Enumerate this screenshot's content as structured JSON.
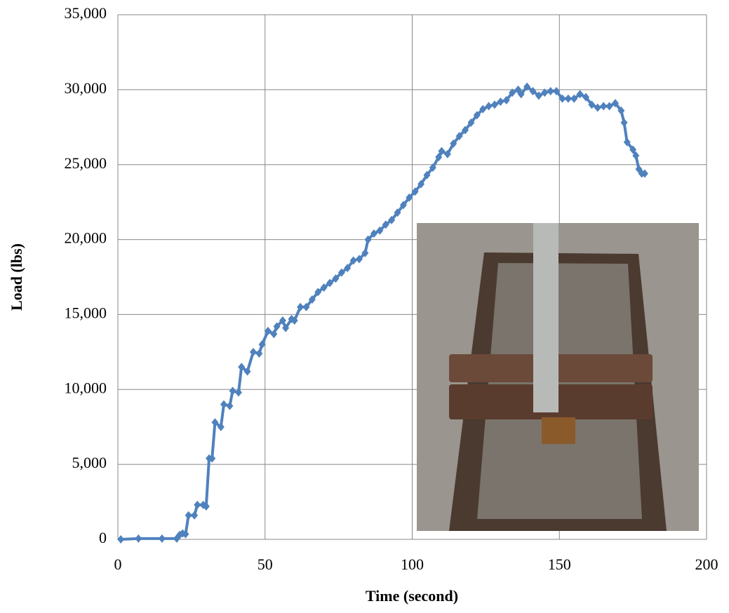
{
  "chart_data": {
    "type": "line",
    "x_label": "Time (second)",
    "y_label": "Load (lbs)",
    "xlim": [
      0,
      200
    ],
    "xticks": [
      0,
      50,
      100,
      150,
      200
    ],
    "ylim": [
      0,
      35000
    ],
    "yticks": [
      0,
      {
        "value": 5000,
        "label": "5,000"
      },
      {
        "value": 10000,
        "label": "10,000"
      },
      {
        "value": 15000,
        "label": "15,000"
      },
      {
        "value": 20000,
        "label": "20,000"
      },
      {
        "value": 25000,
        "label": "25,000"
      },
      {
        "value": 30000,
        "label": "30,000"
      },
      {
        "value": 35000,
        "label": "35,000"
      }
    ],
    "grid": true,
    "series": [
      {
        "color": "#4f81bd",
        "x": [
          1,
          7,
          15,
          20,
          21,
          22,
          23,
          24,
          26,
          27,
          29,
          30,
          31,
          32,
          33,
          35,
          36,
          38,
          39,
          41,
          42,
          44,
          46,
          48,
          49,
          51,
          53,
          54,
          56,
          57,
          59,
          60,
          62,
          64,
          66,
          68,
          70,
          72,
          74,
          76,
          78,
          80,
          82,
          84,
          85,
          87,
          89,
          91,
          93,
          95,
          97,
          99,
          101,
          103,
          105,
          107,
          109,
          110,
          112,
          114,
          116,
          118,
          120,
          122,
          124,
          126,
          128,
          130,
          132,
          134,
          136,
          137,
          139,
          141,
          143,
          145,
          147,
          149,
          151,
          153,
          155,
          157,
          159,
          161,
          163,
          165,
          167,
          169,
          171,
          172,
          173,
          175,
          176,
          177,
          178,
          179
        ],
        "values": [
          0,
          50,
          50,
          50,
          300,
          400,
          350,
          1600,
          1600,
          2300,
          2300,
          2200,
          5400,
          5400,
          7800,
          7500,
          9000,
          8900,
          9900,
          9800,
          11500,
          11200,
          12500,
          12400,
          13000,
          13900,
          13700,
          14200,
          14600,
          14100,
          14700,
          14600,
          15500,
          15500,
          16000,
          16500,
          16800,
          17100,
          17400,
          17800,
          18100,
          18600,
          18700,
          19100,
          20000,
          20400,
          20600,
          21000,
          21300,
          21800,
          22300,
          22800,
          23200,
          23700,
          24300,
          24800,
          25500,
          25900,
          25700,
          26400,
          26900,
          27300,
          27800,
          28300,
          28700,
          28900,
          29000,
          29200,
          29300,
          29800,
          30000,
          29700,
          30200,
          29900,
          29600,
          29800,
          29900,
          29900,
          29400,
          29400,
          29400,
          29700,
          29500,
          29000,
          28800,
          28900,
          28900,
          29100,
          28600,
          27800,
          26500,
          26000,
          25600,
          24700,
          24400,
          24400
        ]
      }
    ]
  }
}
